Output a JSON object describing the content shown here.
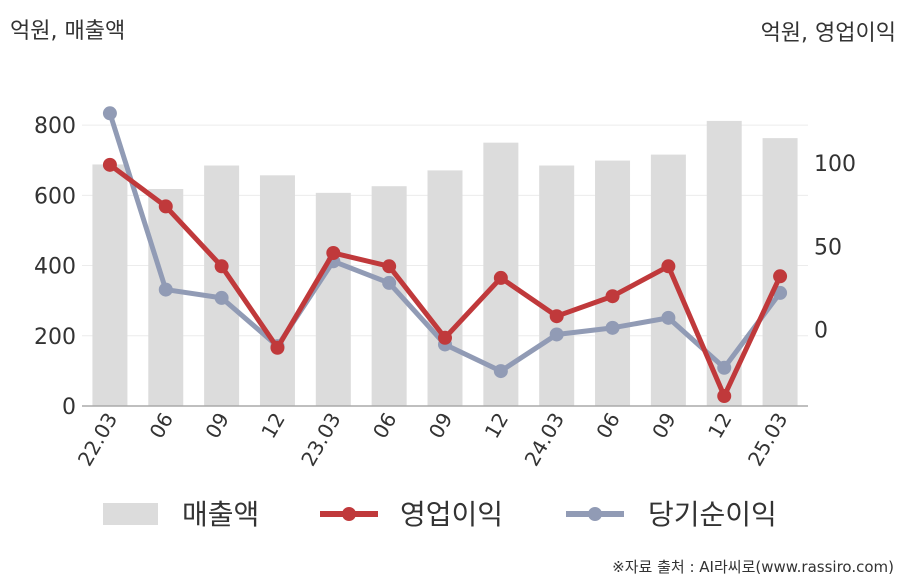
{
  "chart_data": {
    "type": "bar",
    "categories": [
      "22.03",
      "06",
      "09",
      "12",
      "23.03",
      "06",
      "09",
      "12",
      "24.03",
      "06",
      "09",
      "12",
      "25.03"
    ],
    "left_axis_label": "억원, 매출액",
    "right_axis_label": "억원, 영업이익",
    "left_ylim": [
      0,
      900
    ],
    "left_yticks": [
      0,
      200,
      400,
      600,
      800
    ],
    "right_ylim": [
      -46,
      144
    ],
    "right_yticks": [
      0,
      50,
      100
    ],
    "grid": true,
    "legend_position": "bottom",
    "series": [
      {
        "name": "매출액",
        "type": "bar",
        "axis": "left",
        "color": "#dcdcdc",
        "values": [
          688,
          618,
          685,
          657,
          607,
          626,
          671,
          750,
          685,
          699,
          716,
          812,
          763
        ]
      },
      {
        "name": "영업이익",
        "type": "line",
        "axis": "right",
        "color": "#c0393b",
        "values": [
          99,
          74,
          38,
          -11,
          46,
          38,
          -5,
          31,
          8,
          20,
          38,
          -40,
          32
        ]
      },
      {
        "name": "당기순이익",
        "type": "line",
        "axis": "right",
        "color": "#919bb5",
        "values": [
          130,
          24,
          19,
          -10,
          41,
          28,
          -9,
          -25,
          -3,
          1,
          7,
          -23,
          22
        ]
      }
    ]
  },
  "source": "※자료 출처 : AI라씨로(www.rassiro.com)"
}
